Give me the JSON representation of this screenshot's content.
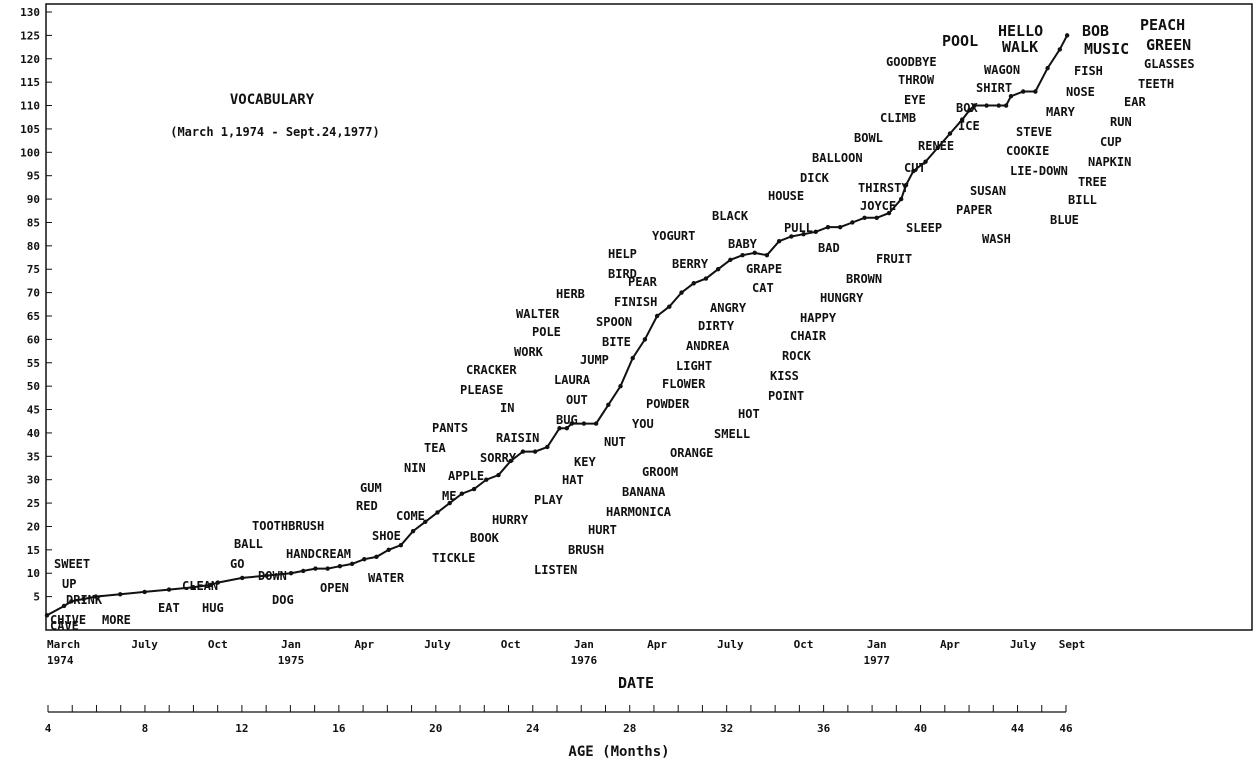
{
  "chart_data": {
    "type": "line",
    "title": "VOCABULARY",
    "subtitle": "(March 1,1974 - Sept.24,1977)",
    "xlabel": "DATE",
    "x2label": "AGE (Months)",
    "ylabel": "",
    "ylim": [
      0,
      130
    ],
    "yticks": [
      "5",
      "10",
      "15",
      "20",
      "25",
      "30",
      "35",
      "40",
      "45",
      "50",
      "55",
      "60",
      "65",
      "70",
      "75",
      "80",
      "85",
      "90",
      "95",
      "100",
      "105",
      "110",
      "115",
      "120",
      "125",
      "130"
    ],
    "date_ticks": [
      {
        "m": 0,
        "line1": "March",
        "line2": "1974"
      },
      {
        "m": 4,
        "line1": "July",
        "line2": ""
      },
      {
        "m": 7,
        "line1": "Oct",
        "line2": ""
      },
      {
        "m": 10,
        "line1": "Jan",
        "line2": "1975"
      },
      {
        "m": 13,
        "line1": "Apr",
        "line2": ""
      },
      {
        "m": 16,
        "line1": "July",
        "line2": ""
      },
      {
        "m": 19,
        "line1": "Oct",
        "line2": ""
      },
      {
        "m": 22,
        "line1": "Jan",
        "line2": "1976"
      },
      {
        "m": 25,
        "line1": "Apr",
        "line2": ""
      },
      {
        "m": 28,
        "line1": "July",
        "line2": ""
      },
      {
        "m": 31,
        "line1": "Oct",
        "line2": ""
      },
      {
        "m": 34,
        "line1": "Jan",
        "line2": "1977"
      },
      {
        "m": 37,
        "line1": "Apr",
        "line2": ""
      },
      {
        "m": 40,
        "line1": "July",
        "line2": ""
      },
      {
        "m": 42,
        "line1": "Sept",
        "line2": ""
      }
    ],
    "age_range": [
      4,
      46
    ],
    "age_ticks": [
      "4",
      "8",
      "12",
      "16",
      "20",
      "24",
      "28",
      "32",
      "36",
      "40",
      "44",
      "46"
    ],
    "grid": false,
    "series": [
      {
        "x": [
          0,
          0.7,
          1,
          1.5,
          2,
          3,
          4,
          5,
          6,
          6.7,
          7,
          8,
          9,
          10,
          10.5,
          11,
          11.5,
          12,
          12.5,
          13,
          13.5,
          14,
          14.5,
          15,
          15.5,
          16,
          16.5,
          17,
          17.5,
          18,
          18.5,
          19,
          19.5,
          20,
          20.5,
          21,
          21.3,
          21.5,
          22,
          22.5,
          23,
          23.5,
          24,
          24.5,
          25,
          25.5,
          26,
          26.5,
          27,
          27.5,
          28,
          28.5,
          29,
          29.5,
          30,
          30.5,
          31,
          31.5,
          32,
          32.5,
          33,
          33.5,
          34,
          34.5,
          35,
          35.2,
          35.5,
          36,
          36.5,
          37,
          37.5,
          37.8,
          38,
          38.5,
          39,
          39.3,
          39.5,
          40,
          40.5,
          41,
          41.5,
          41.8
        ],
        "y": [
          1,
          3,
          4,
          4.5,
          5,
          5.5,
          6,
          6.5,
          7,
          7.5,
          8,
          9,
          9.5,
          10,
          10.5,
          11,
          11,
          11.5,
          12,
          13,
          13.5,
          15,
          16,
          19,
          21,
          23,
          25,
          27,
          28,
          30,
          31,
          34,
          36,
          36,
          37,
          41,
          41,
          42,
          42,
          42,
          46,
          50,
          56,
          60,
          65,
          67,
          70,
          72,
          73,
          75,
          77,
          78,
          78.5,
          78,
          81,
          82,
          82.5,
          83,
          84,
          84,
          85,
          86,
          86,
          87,
          90,
          93,
          96,
          98,
          101,
          104,
          107,
          109,
          110,
          110,
          110,
          110,
          112,
          113,
          113,
          118,
          122,
          125
        ],
        "words_y": {
          "_note_removed": true
        }
      }
    ],
    "words": {
      "col1": [
        "SWEET",
        "UP",
        "DRINK",
        "MORE",
        "CHIVE",
        "CAVE"
      ],
      "col2": [
        "CLEAN",
        "EAT",
        "HUG",
        "BALL",
        "GO",
        "DOWN",
        "DOG"
      ],
      "col3": [
        "TOOTHBRUSH",
        "HANDCREAM",
        "OPEN",
        "WATER"
      ],
      "col4": [
        "RED",
        "GUM",
        "NIN",
        "TEA",
        "PANTS",
        "SHOE",
        "COME",
        "ME",
        "APPLE",
        "TICKLE"
      ],
      "col5": [
        "CRACKER",
        "PLEASE",
        "IN",
        "RAISIN",
        "SORRY",
        "BOOK",
        "HURRY",
        "PLAY",
        "HAT"
      ],
      "col6": [
        "HERB",
        "WALTER",
        "POLE",
        "WORK",
        "JUMP",
        "LAURA",
        "OUT",
        "BUG",
        "KEY",
        "NUT"
      ],
      "col7": [
        "HELP",
        "BIRD",
        "PEAR",
        "FINISH",
        "SPOON",
        "BITE",
        "BERRY",
        "YOGURT",
        "YOU",
        "POWDER",
        "FLOWER",
        "LIGHT",
        "ANDREA",
        "DIRTY",
        "ANGRY"
      ],
      "col8": [
        "BABY",
        "GRAPE",
        "CAT",
        "BAD",
        "BLACK",
        "PULL",
        "HOUSE",
        "DICK",
        "BALLOON",
        "BOWL",
        "CLIMB",
        "EYE",
        "THROW",
        "GOODBYE",
        "POOL"
      ],
      "col9": [
        "THIRSTY",
        "JOYCE",
        "SLEEP",
        "CUT",
        "RENEE",
        "ICE",
        "BOX",
        "SHIRT",
        "WAGON",
        "WALK",
        "HELLO",
        "BOB",
        "MUSIC",
        "FISH",
        "NOSE",
        "MARY",
        "STEVE",
        "COOKIE",
        "LIE-DOWN",
        "SUSAN",
        "PAPER",
        "WASH"
      ],
      "col10": [
        "PEACH",
        "GREEN",
        "GLASSES",
        "TEETH",
        "EAR",
        "RUN",
        "CUP",
        "NAPKIN",
        "TREE",
        "BILL",
        "BLUE"
      ],
      "col11": [
        "ORANGE",
        "GROOM",
        "BANANA",
        "HARMONICA",
        "HURT",
        "BRUSH",
        "LISTEN",
        "SMELL",
        "HOT",
        "POINT",
        "KISS",
        "ROCK",
        "CHAIR",
        "HAPPY",
        "HUNGRY",
        "BROWN",
        "FRUIT"
      ]
    }
  }
}
